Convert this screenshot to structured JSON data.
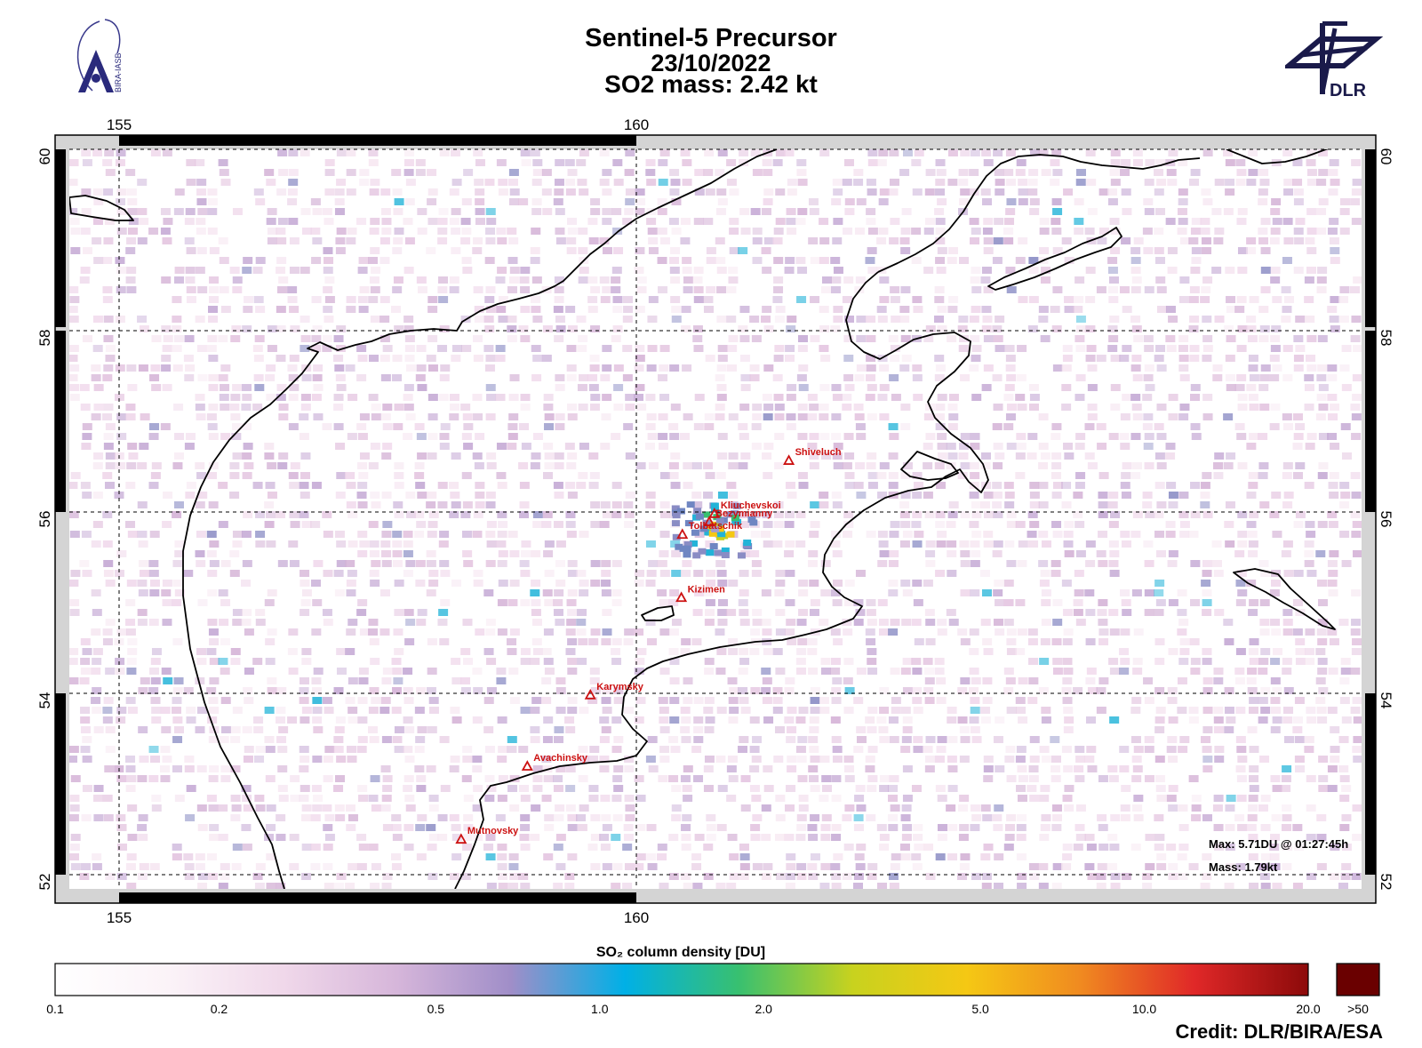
{
  "title": {
    "line1": "Sentinel-5 Precursor",
    "line2": "23/10/2022",
    "line3": "SO2 mass: 2.42   kt"
  },
  "logos": {
    "left_icon": "bira-iasb-logo",
    "left_text": "BIRA-IASB",
    "right_icon": "dlr-logo",
    "right_text": "DLR"
  },
  "map": {
    "lon_ticks": [
      "155",
      "160"
    ],
    "lat_ticks": [
      "60",
      "58",
      "56",
      "54",
      "52"
    ],
    "lon_range": [
      154.4,
      166.9
    ],
    "lat_range": [
      51.9,
      60.1
    ],
    "gridlines": "dashed",
    "volcanoes": [
      {
        "name": "Shiveluch",
        "lon": 161.36,
        "lat": 56.65
      },
      {
        "name": "Kliuchevskoi",
        "lon": 160.64,
        "lat": 56.06
      },
      {
        "name": "Bezymianny",
        "lon": 160.59,
        "lat": 55.97
      },
      {
        "name": "Tolbatschik",
        "lon": 160.33,
        "lat": 55.83
      },
      {
        "name": "Kizimen",
        "lon": 160.32,
        "lat": 55.13
      },
      {
        "name": "Karymsky",
        "lon": 159.44,
        "lat": 54.05
      },
      {
        "name": "Avachinsky",
        "lon": 158.83,
        "lat": 53.26
      },
      {
        "name": "Mutnovsky",
        "lon": 158.19,
        "lat": 52.45
      }
    ],
    "info_max": "Max:   5.71DU @ 01:27:45h",
    "info_mass": "Mass:   1.79kt",
    "colors": {
      "volcano": "#cc1111",
      "coast": "#000000"
    }
  },
  "colorbar": {
    "label": "SO₂ column density [DU]",
    "ticks": [
      "0.1",
      "0.2",
      "0.5",
      "1.0",
      "2.0",
      "5.0",
      "10.0",
      "20.0"
    ],
    "overflow_label": ">50",
    "colors": [
      "#ffffff",
      "#fbf3f8",
      "#f0d8ea",
      "#d6b6da",
      "#a08ec8",
      "#00b0e6",
      "#38c070",
      "#c8d21e",
      "#f5c814",
      "#f08a20",
      "#e02828",
      "#8c0a0a",
      "#6a0000"
    ]
  },
  "credit": "Credit: DLR/BIRA/ESA"
}
